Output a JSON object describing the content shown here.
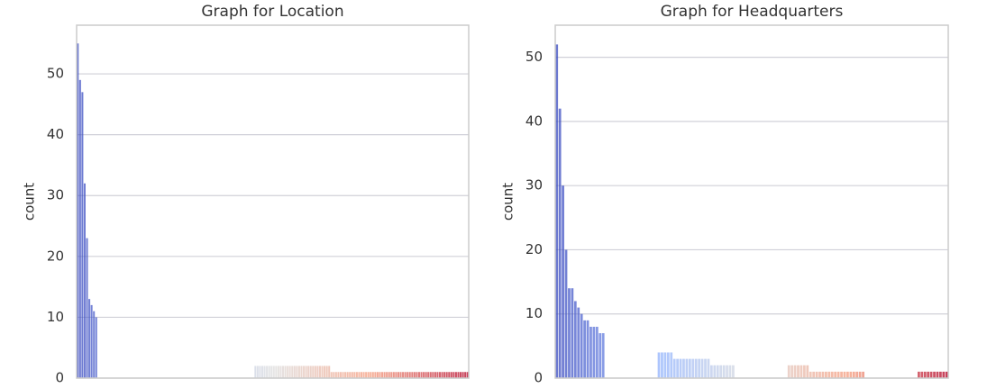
{
  "chart_data": [
    {
      "type": "bar",
      "title": "Graph for Location",
      "y_label": "count",
      "palette": "coolwarm",
      "grid": true,
      "ylim": [
        0,
        58
      ],
      "yticks": [
        0,
        10,
        20,
        30,
        40,
        50
      ],
      "values": [
        55,
        49,
        47,
        32,
        23,
        13,
        12,
        11,
        10,
        null,
        null,
        null,
        null,
        null,
        null,
        null,
        null,
        null,
        null,
        null,
        null,
        null,
        null,
        null,
        null,
        null,
        null,
        null,
        null,
        null,
        null,
        null,
        null,
        null,
        null,
        null,
        null,
        null,
        null,
        null,
        null,
        null,
        null,
        null,
        null,
        null,
        null,
        null,
        null,
        null,
        null,
        null,
        null,
        null,
        null,
        null,
        null,
        null,
        null,
        null,
        null,
        null,
        null,
        null,
        null,
        null,
        null,
        null,
        null,
        null,
        null,
        null,
        null,
        null,
        null,
        null,
        null,
        2,
        2,
        2,
        2,
        2,
        2,
        2,
        2,
        2,
        2,
        2,
        2,
        2,
        2,
        2,
        2,
        2,
        2,
        2,
        2,
        2,
        2,
        2,
        2,
        2,
        2,
        2,
        2,
        2,
        2,
        2,
        2,
        2,
        1,
        1,
        1,
        1,
        1,
        1,
        1,
        1,
        1,
        1,
        1,
        1,
        1,
        1,
        1,
        1,
        1,
        1,
        1,
        1,
        1,
        1,
        1,
        1,
        1,
        1,
        1,
        1,
        1,
        1,
        1,
        1,
        1,
        1,
        1,
        1,
        1,
        1,
        1,
        1,
        1,
        1,
        1,
        1,
        1,
        1,
        1,
        1,
        1,
        1,
        1,
        1,
        1,
        1,
        1,
        1,
        1,
        1,
        1,
        1
      ]
    },
    {
      "type": "bar",
      "title": "Graph for Headquarters",
      "y_label": "count",
      "palette": "coolwarm",
      "grid": true,
      "ylim": [
        0,
        55
      ],
      "yticks": [
        0,
        10,
        20,
        30,
        40,
        50
      ],
      "values": [
        52,
        42,
        30,
        20,
        14,
        14,
        12,
        11,
        10,
        9,
        9,
        8,
        8,
        8,
        7,
        7,
        null,
        null,
        null,
        null,
        null,
        null,
        null,
        null,
        null,
        null,
        null,
        null,
        null,
        null,
        null,
        null,
        null,
        4,
        4,
        4,
        4,
        4,
        3,
        3,
        3,
        3,
        3,
        3,
        3,
        3,
        3,
        3,
        3,
        3,
        2,
        2,
        2,
        2,
        2,
        2,
        2,
        2,
        null,
        null,
        null,
        null,
        null,
        null,
        null,
        null,
        null,
        null,
        null,
        null,
        null,
        null,
        null,
        null,
        null,
        2,
        2,
        2,
        2,
        2,
        2,
        2,
        1,
        1,
        1,
        1,
        1,
        1,
        1,
        1,
        1,
        1,
        1,
        1,
        1,
        1,
        1,
        1,
        1,
        1,
        null,
        null,
        null,
        null,
        null,
        null,
        null,
        null,
        null,
        null,
        null,
        null,
        null,
        null,
        null,
        null,
        null,
        1,
        1,
        1,
        1,
        1,
        1,
        1,
        1,
        1,
        1
      ]
    }
  ]
}
